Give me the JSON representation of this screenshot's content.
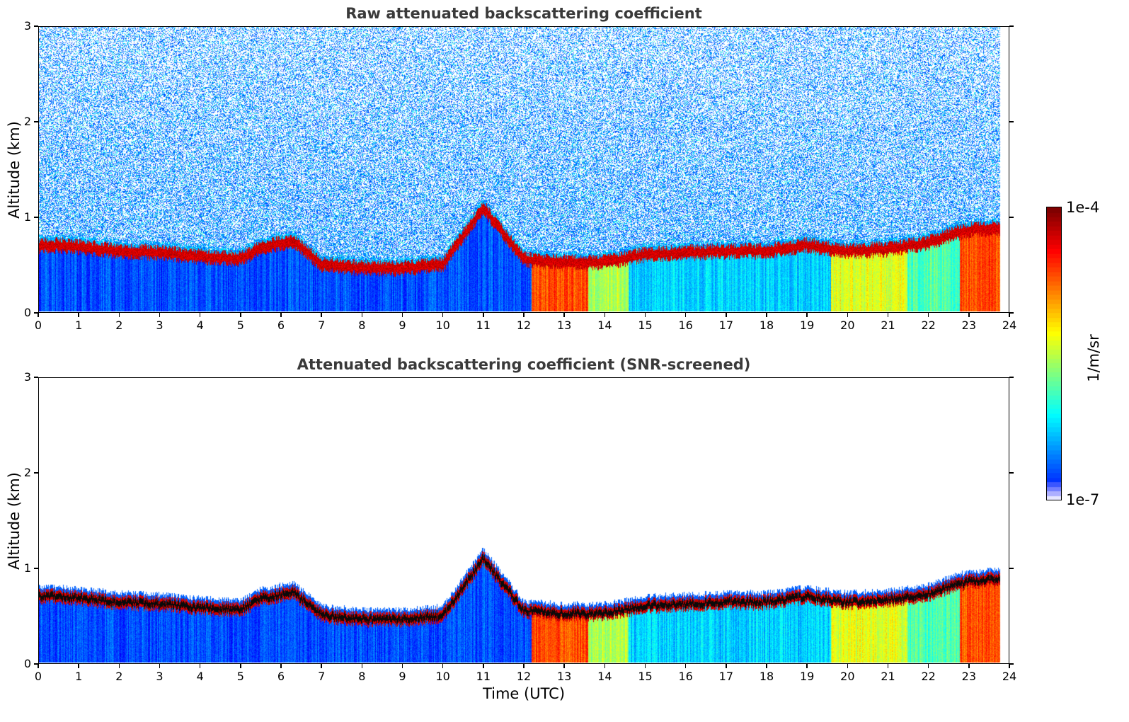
{
  "chart_data": [
    {
      "type": "heatmap",
      "title": "Raw attenuated backscattering coefficient",
      "xlabel": "",
      "ylabel": "Altitude (km)",
      "xlim": [
        0,
        24
      ],
      "ylim": [
        0,
        3
      ],
      "x_ticks": [
        "0",
        "1",
        "2",
        "3",
        "4",
        "5",
        "6",
        "7",
        "8",
        "9",
        "10",
        "11",
        "12",
        "13",
        "14",
        "15",
        "16",
        "17",
        "18",
        "19",
        "20",
        "21",
        "22",
        "23",
        "24"
      ],
      "y_ticks": [
        "0",
        "1",
        "2",
        "3"
      ],
      "screened": false,
      "cloud_layer_km": {
        "hours": [
          0.5,
          1,
          2,
          3,
          4,
          5,
          5.5,
          6,
          6.3,
          7,
          8,
          9,
          10,
          11,
          12,
          13,
          14,
          15,
          16,
          17,
          18,
          19,
          19.6,
          20,
          21,
          22,
          22.5,
          23,
          23.7
        ],
        "altitude": [
          0.7,
          0.68,
          0.64,
          0.62,
          0.58,
          0.56,
          0.68,
          0.72,
          0.74,
          0.5,
          0.46,
          0.46,
          0.5,
          1.1,
          0.55,
          0.52,
          0.52,
          0.6,
          0.62,
          0.64,
          0.64,
          0.7,
          0.66,
          0.64,
          0.66,
          0.72,
          0.8,
          0.86,
          0.88
        ]
      }
    },
    {
      "type": "heatmap",
      "title": "Attenuated backscattering coefficient (SNR-screened)",
      "xlabel": "Time (UTC)",
      "ylabel": "Altitude (km)",
      "xlim": [
        0,
        24
      ],
      "ylim": [
        0,
        3
      ],
      "x_ticks": [
        "0",
        "1",
        "2",
        "3",
        "4",
        "5",
        "6",
        "7",
        "8",
        "9",
        "10",
        "11",
        "12",
        "13",
        "14",
        "15",
        "16",
        "17",
        "18",
        "19",
        "20",
        "21",
        "22",
        "23",
        "24"
      ],
      "y_ticks": [
        "0",
        "1",
        "2",
        "3"
      ],
      "screened": true
    }
  ],
  "colorbar": {
    "label": "1/m/sr",
    "max_label": "1e-4",
    "min_label": "1e-7",
    "colormap": "jet"
  }
}
